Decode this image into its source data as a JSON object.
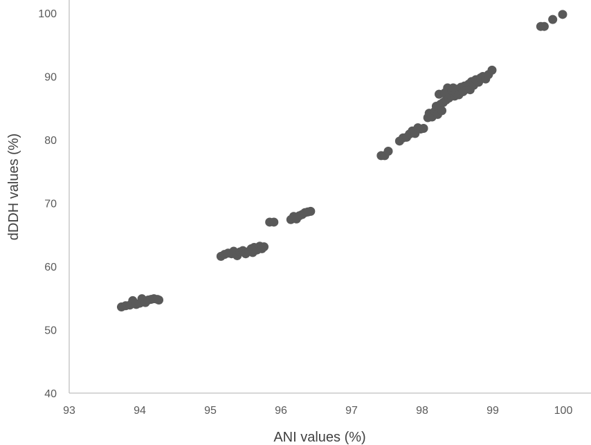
{
  "chart_data": {
    "type": "scatter",
    "title": "",
    "xlabel": "ANI values (%)",
    "ylabel": "dDDH values (%)",
    "xlim": [
      93,
      100
    ],
    "ylim": [
      40,
      100
    ],
    "xticks": [
      93,
      94,
      95,
      96,
      97,
      98,
      99,
      100
    ],
    "yticks": [
      40,
      50,
      60,
      70,
      80,
      90,
      100
    ],
    "grid": false,
    "legend": "none",
    "marker_color": "#595959",
    "series": [
      {
        "points": [
          [
            93.74,
            53.6
          ],
          [
            93.8,
            53.8
          ],
          [
            93.86,
            53.9
          ],
          [
            93.9,
            54.6
          ],
          [
            93.95,
            54.0
          ],
          [
            94.0,
            54.2
          ],
          [
            94.03,
            54.9
          ],
          [
            94.08,
            54.3
          ],
          [
            94.12,
            54.7
          ],
          [
            94.16,
            54.8
          ],
          [
            94.2,
            54.9
          ],
          [
            94.25,
            54.8
          ],
          [
            94.27,
            54.7
          ],
          [
            95.15,
            61.6
          ],
          [
            95.2,
            61.9
          ],
          [
            95.25,
            62.1
          ],
          [
            95.3,
            62.0
          ],
          [
            95.33,
            62.4
          ],
          [
            95.38,
            61.7
          ],
          [
            95.42,
            62.3
          ],
          [
            95.46,
            62.5
          ],
          [
            95.5,
            62.0
          ],
          [
            95.55,
            62.4
          ],
          [
            95.58,
            62.8
          ],
          [
            95.6,
            62.2
          ],
          [
            95.62,
            63.0
          ],
          [
            95.66,
            62.6
          ],
          [
            95.7,
            63.2
          ],
          [
            95.73,
            62.8
          ],
          [
            95.76,
            63.1
          ],
          [
            95.84,
            67.0
          ],
          [
            95.9,
            67.0
          ],
          [
            96.14,
            67.4
          ],
          [
            96.18,
            67.9
          ],
          [
            96.22,
            67.5
          ],
          [
            96.26,
            68.0
          ],
          [
            96.3,
            68.2
          ],
          [
            96.34,
            68.5
          ],
          [
            96.38,
            68.6
          ],
          [
            96.42,
            68.7
          ],
          [
            97.42,
            77.5
          ],
          [
            97.47,
            77.5
          ],
          [
            97.52,
            78.2
          ],
          [
            97.68,
            79.8
          ],
          [
            97.73,
            80.3
          ],
          [
            97.78,
            80.4
          ],
          [
            97.82,
            80.9
          ],
          [
            97.86,
            81.4
          ],
          [
            97.9,
            81.0
          ],
          [
            97.94,
            81.9
          ],
          [
            97.98,
            81.7
          ],
          [
            98.02,
            81.8
          ],
          [
            98.08,
            83.5
          ],
          [
            98.1,
            84.2
          ],
          [
            98.14,
            83.6
          ],
          [
            98.18,
            84.5
          ],
          [
            98.2,
            85.3
          ],
          [
            98.22,
            84.0
          ],
          [
            98.24,
            87.2
          ],
          [
            98.26,
            85.6
          ],
          [
            98.28,
            84.6
          ],
          [
            98.3,
            85.9
          ],
          [
            98.32,
            87.4
          ],
          [
            98.34,
            86.3
          ],
          [
            98.36,
            88.2
          ],
          [
            98.38,
            86.6
          ],
          [
            98.4,
            87.0
          ],
          [
            98.42,
            87.8
          ],
          [
            98.44,
            88.2
          ],
          [
            98.46,
            86.9
          ],
          [
            98.48,
            87.4
          ],
          [
            98.5,
            88.0
          ],
          [
            98.52,
            87.1
          ],
          [
            98.55,
            88.3
          ],
          [
            98.58,
            87.6
          ],
          [
            98.6,
            88.5
          ],
          [
            98.63,
            88.0
          ],
          [
            98.66,
            88.8
          ],
          [
            98.68,
            87.9
          ],
          [
            98.7,
            89.2
          ],
          [
            98.73,
            88.6
          ],
          [
            98.76,
            89.5
          ],
          [
            98.8,
            89.1
          ],
          [
            98.83,
            89.8
          ],
          [
            98.86,
            90.0
          ],
          [
            98.9,
            89.6
          ],
          [
            98.94,
            90.3
          ],
          [
            98.99,
            91.0
          ],
          [
            99.68,
            97.9
          ],
          [
            99.73,
            97.9
          ],
          [
            99.85,
            99.0
          ],
          [
            99.99,
            99.8
          ]
        ]
      }
    ]
  }
}
